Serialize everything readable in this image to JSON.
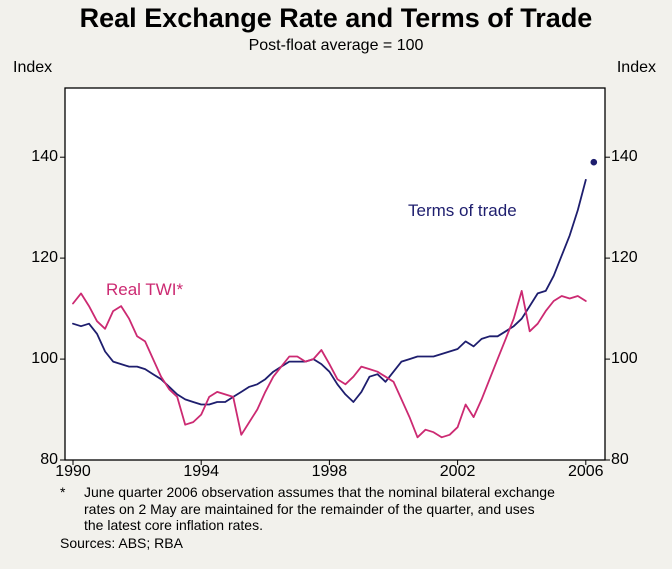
{
  "title": "Real Exchange Rate and Terms of Trade",
  "subtitle": "Post-float average = 100",
  "axis": {
    "left_unit": "Index",
    "right_unit": "Index",
    "y_ticks": [
      "80",
      "100",
      "120",
      "140"
    ],
    "y_tick_values": [
      80,
      100,
      120,
      140
    ],
    "x_ticks": [
      "1990",
      "1994",
      "1998",
      "2002",
      "2006"
    ],
    "x_tick_values": [
      1990,
      1994,
      1998,
      2002,
      2006
    ]
  },
  "labels": {
    "terms_of_trade": "Terms of trade",
    "real_twi": "Real TWI*"
  },
  "colors": {
    "terms_of_trade": "#1e1e6e",
    "real_twi": "#cc2a72",
    "frame": "#000000",
    "plot_background": "#ffffff",
    "page_background": "#f2f1ec"
  },
  "footnote": {
    "marker": "*",
    "lines": [
      "June quarter 2006 observation assumes that the nominal bilateral exchange",
      "rates on 2 May are maintained for the remainder of the quarter, and uses",
      "the latest core inflation rates."
    ],
    "sources": "Sources: ABS; RBA"
  },
  "chart_data": {
    "type": "line",
    "title": "Real Exchange Rate and Terms of Trade",
    "subtitle": "Post-float average = 100",
    "ylabel_left": "Index",
    "ylabel_right": "Index",
    "xlim": [
      1989.75,
      2006.6
    ],
    "ylim": [
      80,
      153.7
    ],
    "x_start": 1990.0,
    "x_step": 0.25,
    "grid": false,
    "series": [
      {
        "name": "Terms of trade",
        "color_key": "terms_of_trade",
        "values": [
          107,
          106.5,
          107,
          105,
          101.5,
          99.5,
          99,
          98.5,
          98.5,
          98,
          97,
          96,
          94.5,
          93,
          92,
          91.5,
          91,
          91,
          91.5,
          91.5,
          92.5,
          93.5,
          94.5,
          95,
          96,
          97.5,
          98.5,
          99.5,
          99.5,
          99.5,
          100,
          99,
          97.5,
          95,
          93,
          91.5,
          93.5,
          96.5,
          97,
          95.5,
          97.5,
          99.5,
          100,
          100.5,
          100.5,
          100.5,
          101,
          101.5,
          102,
          103.5,
          102.5,
          104,
          104.5,
          104.5,
          105.5,
          106.5,
          108,
          110.5,
          113,
          113.5,
          116.5,
          120.5,
          124.5,
          129.5,
          135.5
        ]
      },
      {
        "name": "Real TWI*",
        "color_key": "real_twi",
        "values": [
          111,
          113,
          110.5,
          107.5,
          106,
          109.5,
          110.5,
          108,
          104.5,
          103.5,
          100,
          96.5,
          94,
          92.5,
          87,
          87.5,
          89,
          92.5,
          93.5,
          93,
          92.5,
          85,
          87.5,
          90,
          93.5,
          96.5,
          98.5,
          100.5,
          100.5,
          99.5,
          100,
          101.8,
          99,
          96,
          95,
          96.5,
          98.5,
          98,
          97.5,
          96.5,
          95.5,
          92,
          88.5,
          84.5,
          86,
          85.5,
          84.5,
          85,
          86.5,
          91,
          88.5,
          92,
          96,
          100,
          104,
          108,
          113.5,
          105.5,
          107,
          109.5,
          111.5,
          112.5,
          112,
          112.5,
          111.5
        ]
      }
    ],
    "end_point": {
      "series": "Terms of trade",
      "x": 2006.25,
      "y": 139
    }
  }
}
